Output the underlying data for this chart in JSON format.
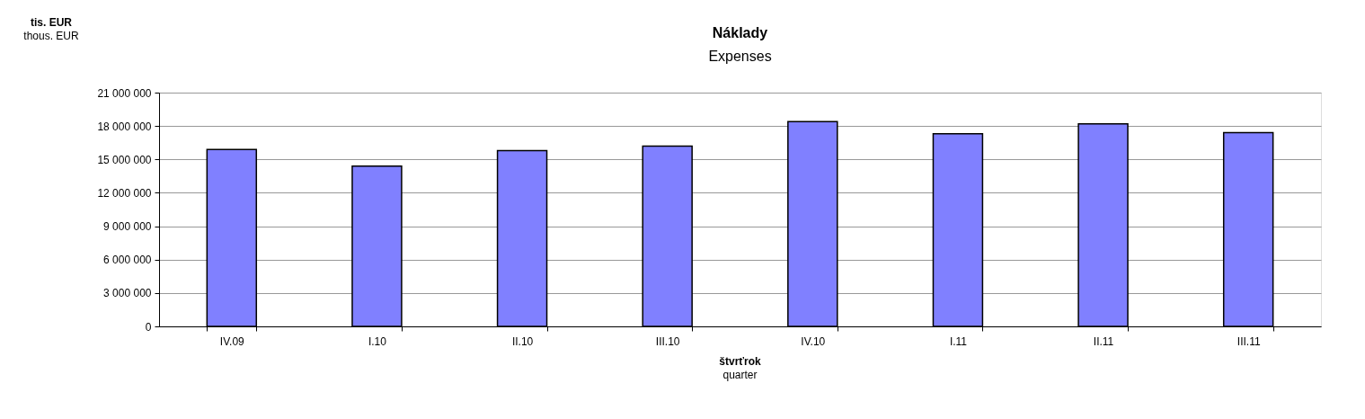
{
  "chart_data": {
    "type": "bar",
    "title": "Náklady",
    "subtitle": "Expenses",
    "ylabel": "tis. EUR\nthous. EUR",
    "xlabel": "štvrťrok\nquarter",
    "categories": [
      "IV.09",
      "I.10",
      "II.10",
      "III.10",
      "IV.10",
      "I.11",
      "II.11",
      "III.11"
    ],
    "values": [
      15900000,
      14400000,
      15800000,
      16200000,
      18400000,
      17300000,
      18200000,
      17400000
    ],
    "color": "#8080ff",
    "ylim": [
      0,
      21000000
    ],
    "yticks": [
      0,
      3000000,
      6000000,
      9000000,
      12000000,
      15000000,
      18000000,
      21000000
    ],
    "grid": "y"
  }
}
